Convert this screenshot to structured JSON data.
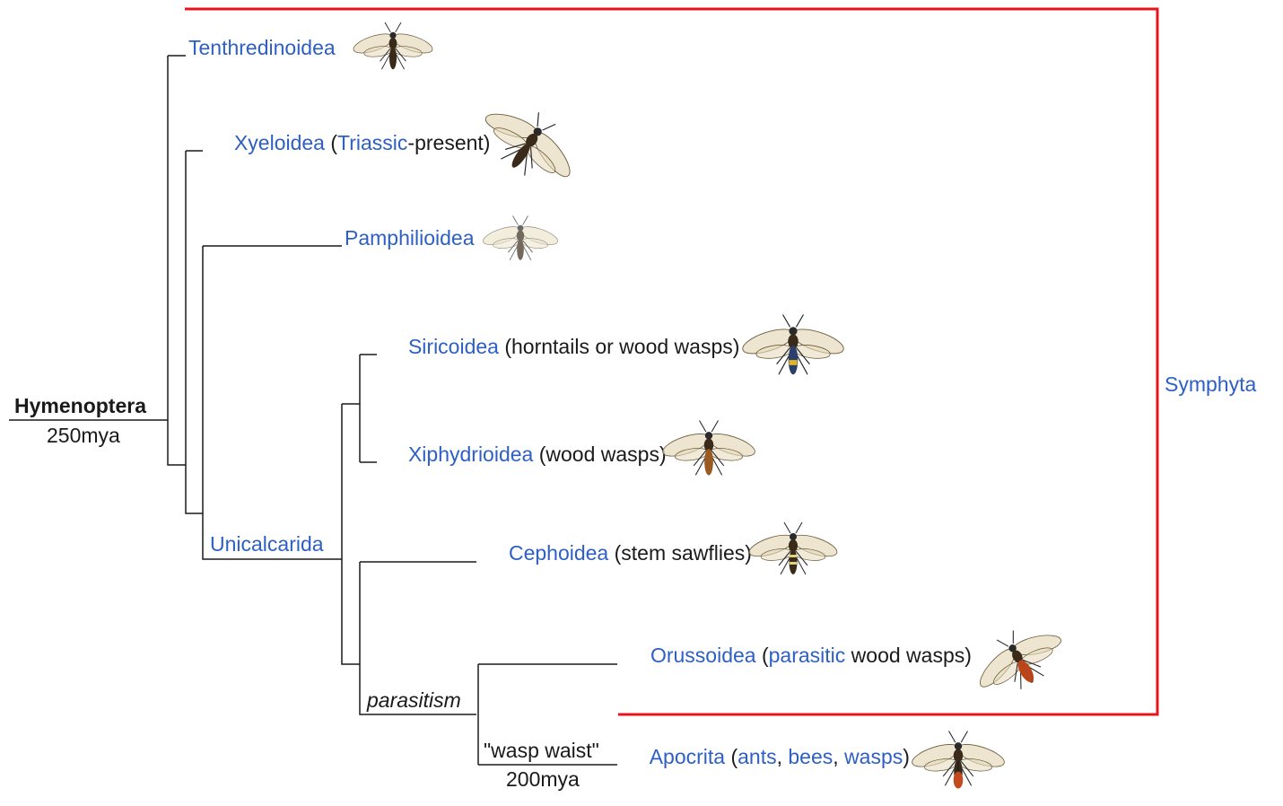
{
  "root": {
    "name": "Hymenoptera",
    "age": "250mya"
  },
  "taxa": {
    "tenthredinoidea": {
      "name": "Tenthredinoidea"
    },
    "xyeloidea": {
      "name": "Xyeloidea",
      "open": " (",
      "period": "Triassic",
      "rest": "-present)"
    },
    "pamphilioidea": {
      "name": "Pamphilioidea"
    },
    "siricoidea": {
      "name": "Siricoidea",
      "note": " (horntails or wood wasps)"
    },
    "xiphydrioidea": {
      "name": "Xiphydrioidea",
      "note": " (wood wasps)"
    },
    "cephoidea": {
      "name": "Cephoidea",
      "note": " (stem sawflies)"
    },
    "orussoidea": {
      "name": "Orussoidea",
      "open": " (",
      "parasitic": "parasitic",
      "rest": " wood wasps)"
    },
    "apocrita": {
      "name": "Apocrita",
      "open": " (",
      "ants": "ants",
      "sep1": ", ",
      "bees": "bees",
      "sep2": ", ",
      "wasps": "wasps",
      "close": ")"
    }
  },
  "clades": {
    "unicalcarida": "Unicalcarida",
    "symphyta": "Symphyta"
  },
  "annotations": {
    "parasitism": "parasitism",
    "wasp_waist": "\"wasp waist\"",
    "apocrita_age": "200mya"
  },
  "colors": {
    "link": "#2d5fc4",
    "text": "#1a1a1a",
    "bracket": "#e8141c"
  },
  "illustrations": [
    "tenthredinoidea-wasp-icon",
    "xyeloidea-sawfly-icon",
    "pamphilioidea-sawfly-icon",
    "siricoidea-horntail-icon",
    "xiphydrioidea-wood-wasp-icon",
    "cephoidea-stem-sawfly-icon",
    "orussoidea-parasitic-wasp-icon",
    "apocrita-wasp-icon"
  ]
}
